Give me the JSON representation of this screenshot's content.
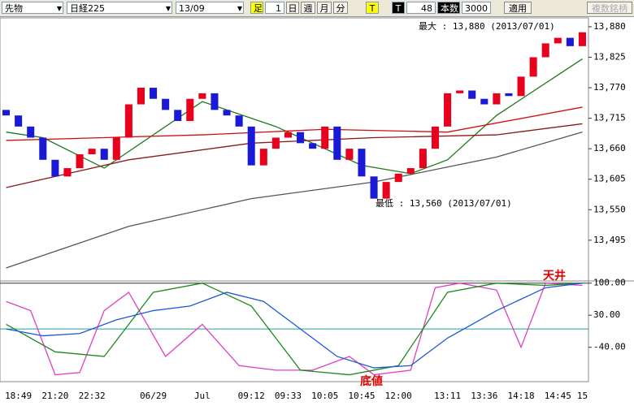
{
  "toolbar": {
    "market": "先物",
    "index": "日経225",
    "month": "13/09",
    "bar_label": "足",
    "bar_size": "1",
    "day": "日",
    "week": "週",
    "monthly": "月",
    "minute": "分",
    "tick": "T",
    "t_label": "T",
    "count": "48",
    "count_label": "本数",
    "max_count": "3000",
    "apply": "適用",
    "multi": "複数銘柄"
  },
  "chart_data": [
    {
      "type": "candlestick",
      "categories": [
        null,
        "18:49",
        null,
        null,
        "21:20",
        null,
        null,
        "22:32",
        null,
        null,
        null,
        null,
        "06/29",
        null,
        null,
        null,
        "Jul",
        null,
        null,
        null,
        "09:12",
        null,
        null,
        "09:33",
        null,
        null,
        "10:05",
        null,
        null,
        "10:45",
        null,
        null,
        "12:00",
        null,
        null,
        null,
        "13:11",
        null,
        null,
        "13:36",
        null,
        null,
        "14:18",
        null,
        null,
        "14:45",
        null,
        "15"
      ],
      "open": [
        13730,
        13720,
        13700,
        13680,
        13640,
        13610,
        13625,
        13650,
        13660,
        13640,
        13680,
        13740,
        13770,
        13750,
        13730,
        13710,
        13750,
        13760,
        13730,
        13720,
        13700,
        13630,
        13660,
        13680,
        13690,
        13670,
        13660,
        13700,
        13640,
        13660,
        13610,
        13570,
        13600,
        13615,
        13625,
        13660,
        13700,
        13760,
        13765,
        13750,
        13740,
        13760,
        13755,
        13790,
        13825,
        13850,
        13860,
        13845
      ],
      "close": [
        13720,
        13700,
        13680,
        13640,
        13610,
        13625,
        13650,
        13660,
        13640,
        13680,
        13740,
        13770,
        13750,
        13730,
        13710,
        13750,
        13760,
        13730,
        13720,
        13700,
        13630,
        13660,
        13680,
        13690,
        13670,
        13660,
        13700,
        13640,
        13660,
        13610,
        13570,
        13600,
        13615,
        13625,
        13660,
        13700,
        13760,
        13765,
        13750,
        13740,
        13760,
        13755,
        13790,
        13825,
        13850,
        13860,
        13845,
        13870
      ],
      "up_color": "#e8001c",
      "down_color": "#1a1ad6",
      "series": [
        {
          "color": "#1a7a1a",
          "x": [
            0,
            3,
            8,
            16,
            22,
            29,
            33,
            36,
            40,
            47
          ],
          "values": [
            13690,
            13680,
            13625,
            13745,
            13700,
            13630,
            13615,
            13640,
            13720,
            13822
          ]
        },
        {
          "color": "#d01010",
          "x": [
            0,
            16,
            26,
            36,
            47
          ],
          "values": [
            13675,
            13685,
            13695,
            13690,
            13735
          ]
        },
        {
          "color": "#8b1a1a",
          "x": [
            0,
            10,
            20,
            30,
            40,
            47
          ],
          "values": [
            13590,
            13640,
            13670,
            13680,
            13685,
            13705
          ]
        },
        {
          "color": "#555555",
          "x": [
            0,
            10,
            20,
            30,
            40,
            47
          ],
          "values": [
            13445,
            13520,
            13570,
            13600,
            13645,
            13690
          ]
        }
      ],
      "ylim": [
        13423,
        13896
      ],
      "yticks": [
        {
          "value": 13880,
          "label": "13,880"
        },
        {
          "value": 13825,
          "label": "13,825"
        },
        {
          "value": 13770,
          "label": "13,770"
        },
        {
          "value": 13715,
          "label": "13,715"
        },
        {
          "value": 13660,
          "label": "13,660"
        },
        {
          "value": 13605,
          "label": "13,605"
        },
        {
          "value": 13550,
          "label": "13,550"
        },
        {
          "value": 13495,
          "label": "13,495"
        }
      ],
      "annotations": [
        "最大 : 13,880 (2013/07/01)",
        "最低 : 13,560 (2013/07/01)"
      ]
    },
    {
      "type": "line",
      "series": [
        {
          "color": "#e040c0",
          "x": [
            0,
            2,
            4,
            6,
            8,
            10,
            13,
            16,
            19,
            22,
            25,
            28,
            30,
            33,
            35,
            37,
            40,
            42,
            44,
            47
          ],
          "values": [
            60,
            40,
            -100,
            -95,
            40,
            80,
            -60,
            10,
            -80,
            -90,
            -90,
            -60,
            -100,
            -90,
            90,
            100,
            85,
            -40,
            100,
            95
          ]
        },
        {
          "color": "#1a8a1a",
          "x": [
            0,
            4,
            8,
            12,
            16,
            20,
            24,
            28,
            32,
            36,
            40,
            44,
            47
          ],
          "values": [
            10,
            -50,
            -60,
            80,
            100,
            50,
            -90,
            -100,
            -80,
            80,
            100,
            95,
            100
          ]
        },
        {
          "color": "#1a5ad6",
          "x": [
            0,
            3,
            6,
            9,
            12,
            15,
            18,
            21,
            24,
            27,
            30,
            33,
            36,
            40,
            44,
            47
          ],
          "values": [
            0,
            -15,
            -10,
            20,
            40,
            50,
            80,
            60,
            0,
            -60,
            -85,
            -80,
            -20,
            40,
            90,
            100
          ]
        }
      ],
      "ylim": [
        -115,
        103
      ],
      "yticks": [
        {
          "value": 100,
          "label": "100.00"
        },
        {
          "value": 30,
          "label": "30.00"
        },
        {
          "value": -40,
          "label": "-40.00"
        }
      ],
      "reference_lines": [
        {
          "value": 0,
          "color": "#20a0a0"
        },
        {
          "value": 100,
          "color": "#333333"
        }
      ],
      "annotations": [
        "天井",
        "底値"
      ]
    }
  ]
}
